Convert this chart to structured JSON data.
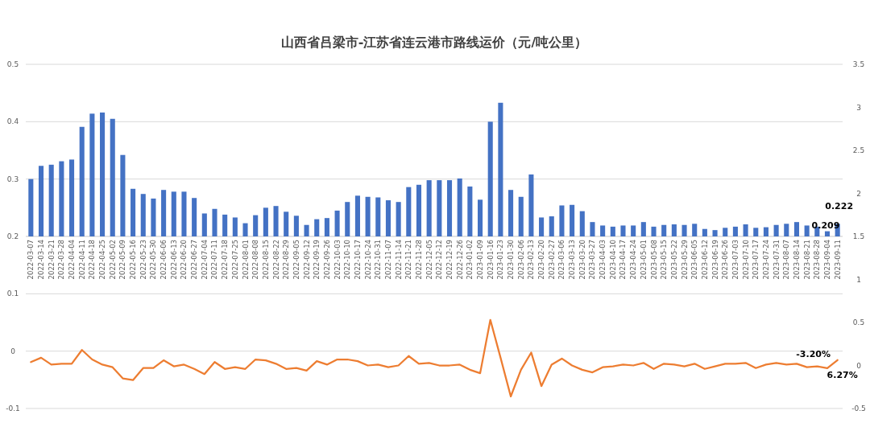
{
  "chart_data": {
    "type": "bar",
    "title": "山西省吕梁市-江苏省连云港市路线运价（元/吨公里）",
    "categories": [
      "2022-03-07",
      "2022-03-14",
      "2022-03-21",
      "2022-03-28",
      "2022-04-04",
      "2022-04-11",
      "2022-04-18",
      "2022-04-25",
      "2022-05-02",
      "2022-05-09",
      "2022-05-16",
      "2022-05-23",
      "2022-05-30",
      "2022-06-06",
      "2022-06-13",
      "2022-06-20",
      "2022-06-27",
      "2022-07-04",
      "2022-07-11",
      "2022-07-18",
      "2022-07-25",
      "2022-08-01",
      "2022-08-08",
      "2022-08-15",
      "2022-08-22",
      "2022-08-29",
      "2022-09-05",
      "2022-09-12",
      "2022-09-19",
      "2022-09-26",
      "2022-10-03",
      "2022-10-10",
      "2022-10-17",
      "2022-10-24",
      "2022-10-31",
      "2022-11-07",
      "2022-11-14",
      "2022-11-21",
      "2022-11-28",
      "2022-12-05",
      "2022-12-12",
      "2022-12-19",
      "2022-12-26",
      "2023-01-02",
      "2023-01-09",
      "2023-01-16",
      "2023-01-23",
      "2023-01-30",
      "2023-02-06",
      "2023-02-13",
      "2023-02-20",
      "2023-02-27",
      "2023-03-06",
      "2023-03-13",
      "2023-03-20",
      "2023-03-27",
      "2023-04-03",
      "2023-04-10",
      "2023-04-17",
      "2023-04-24",
      "2023-05-01",
      "2023-05-08",
      "2023-05-15",
      "2023-05-22",
      "2023-05-29",
      "2023-06-05",
      "2023-06-12",
      "2023-06-19",
      "2023-06-26",
      "2023-07-03",
      "2023-07-10",
      "2023-07-17",
      "2023-07-24",
      "2023-07-31",
      "2023-08-07",
      "2023-08-14",
      "2023-08-21",
      "2023-08-28",
      "2023-09-04",
      "2023-09-11"
    ],
    "ylim": [
      -0.1,
      0.5
    ],
    "yticks": [
      -0.1,
      0,
      0.1,
      0.2,
      0.3,
      0.4,
      0.5
    ],
    "y2lim": [
      -0.5,
      3.5
    ],
    "y2ticks": [
      -0.5,
      0,
      0.5,
      1,
      1.5,
      2,
      2.5,
      3,
      3.5
    ],
    "grid": "y",
    "series": [
      {
        "color": "#4472c4",
        "base": [
          0.2,
          0.2,
          0.2,
          0.2,
          0.2,
          0.2,
          0.2,
          0.2,
          0.2,
          0.2,
          0.2,
          0.2,
          0.2,
          0.2,
          0.2,
          0.2,
          0.2,
          0.2,
          0.2,
          0.2,
          0.2,
          0.2,
          0.2,
          0.2,
          0.2,
          0.2,
          0.2,
          0.2,
          0.2,
          0.2,
          0.2,
          0.2,
          0.2,
          0.2,
          0.2,
          0.2,
          0.2,
          0.2,
          0.2,
          0.2,
          0.2,
          0.2,
          0.2,
          0.2,
          0.2,
          0.2,
          0.2,
          0.2,
          0.2,
          0.2,
          0.2,
          0.2,
          0.2,
          0.2,
          0.2,
          0.2,
          0.2,
          0.2,
          0.2,
          0.2,
          0.2,
          0.2,
          0.2,
          0.2,
          0.2,
          0.2,
          0.2,
          0.2,
          0.2,
          0.2,
          0.2,
          0.2,
          0.2,
          0.2,
          0.2,
          0.2,
          0.2,
          0.2,
          0.2,
          0.2
        ],
        "values": [
          0.1,
          0.123,
          0.125,
          0.131,
          0.134,
          0.191,
          0.214,
          0.216,
          0.205,
          0.142,
          0.083,
          0.074,
          0.066,
          0.081,
          0.078,
          0.078,
          0.067,
          0.04,
          0.048,
          0.038,
          0.033,
          0.023,
          0.037,
          0.05,
          0.053,
          0.043,
          0.036,
          0.02,
          0.03,
          0.032,
          0.045,
          0.06,
          0.071,
          0.069,
          0.068,
          0.063,
          0.06,
          0.086,
          0.09,
          0.098,
          0.098,
          0.098,
          0.101,
          0.087,
          0.064,
          0.2,
          0.233,
          0.081,
          0.069,
          0.108,
          0.033,
          0.035,
          0.054,
          0.055,
          0.044,
          0.025,
          0.019,
          0.017,
          0.019,
          0.019,
          0.025,
          0.017,
          0.02,
          0.021,
          0.02,
          0.022,
          0.013,
          0.011,
          0.015,
          0.017,
          0.021,
          0.015,
          0.016,
          0.02,
          0.022,
          0.025,
          0.019,
          0.017,
          0.009,
          0.022
        ],
        "value_labels": [
          null,
          null,
          null,
          null,
          null,
          null,
          null,
          null,
          null,
          null,
          null,
          null,
          null,
          null,
          null,
          null,
          null,
          null,
          null,
          null,
          null,
          null,
          null,
          null,
          null,
          null,
          null,
          null,
          null,
          null,
          null,
          null,
          null,
          null,
          null,
          null,
          null,
          null,
          null,
          null,
          null,
          null,
          null,
          null,
          null,
          null,
          null,
          null,
          null,
          null,
          null,
          null,
          null,
          null,
          null,
          null,
          null,
          null,
          null,
          null,
          null,
          null,
          null,
          null,
          null,
          null,
          null,
          null,
          null,
          null,
          null,
          null,
          null,
          null,
          null,
          null,
          null,
          null,
          "0.209",
          "0.222"
        ]
      },
      {
        "type": "line",
        "axis": "y2",
        "color": "#ed7d31",
        "values": [
          0.04,
          0.09,
          0.01,
          0.02,
          0.02,
          0.18,
          0.07,
          0.01,
          -0.02,
          -0.15,
          -0.17,
          -0.03,
          -0.03,
          0.06,
          -0.01,
          0.01,
          -0.04,
          -0.1,
          0.04,
          -0.04,
          -0.02,
          -0.04,
          0.07,
          0.06,
          0.02,
          -0.04,
          -0.03,
          -0.06,
          0.05,
          0.01,
          0.07,
          0.07,
          0.05,
          0,
          0.01,
          -0.02,
          0,
          0.11,
          0.02,
          0.03,
          0,
          0,
          0.01,
          -0.05,
          -0.09,
          0.53,
          0.09,
          -0.36,
          -0.05,
          0.15,
          -0.24,
          0.01,
          0.08,
          0,
          -0.05,
          -0.08,
          -0.02,
          -0.01,
          0.01,
          0,
          0.03,
          -0.04,
          0.02,
          0.01,
          -0.01,
          0.02,
          -0.04,
          -0.01,
          0.02,
          0.02,
          0.03,
          -0.03,
          0.01,
          0.03,
          0.01,
          0.02,
          -0.02,
          -0.01,
          -0.032,
          0.0627
        ],
        "value_labels": [
          null,
          null,
          null,
          null,
          null,
          null,
          null,
          null,
          null,
          null,
          null,
          null,
          null,
          null,
          null,
          null,
          null,
          null,
          null,
          null,
          null,
          null,
          null,
          null,
          null,
          null,
          null,
          null,
          null,
          null,
          null,
          null,
          null,
          null,
          null,
          null,
          null,
          null,
          null,
          null,
          null,
          null,
          null,
          null,
          null,
          null,
          null,
          null,
          null,
          null,
          null,
          null,
          null,
          null,
          null,
          null,
          null,
          null,
          null,
          null,
          null,
          null,
          null,
          null,
          null,
          null,
          null,
          null,
          null,
          null,
          null,
          null,
          null,
          null,
          null,
          null,
          null,
          null,
          "-3.20%",
          "6.27%"
        ]
      }
    ]
  }
}
